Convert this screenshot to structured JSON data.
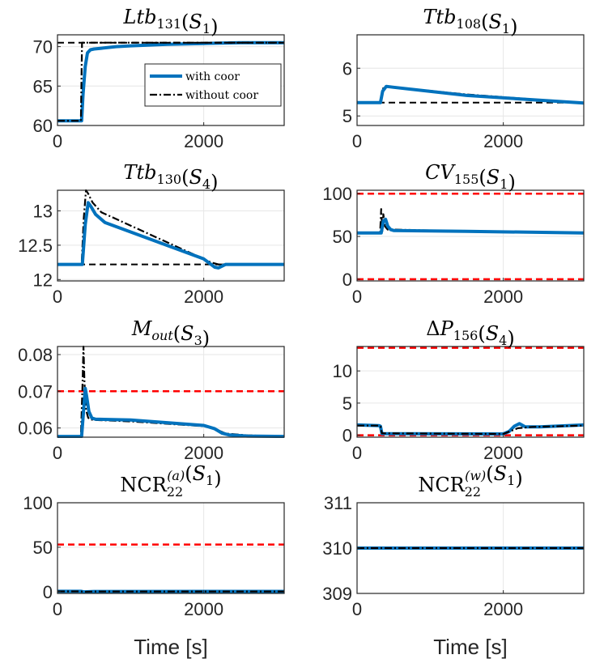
{
  "figure": {
    "legend": {
      "with_label": "with coor",
      "without_label": "without coor"
    }
  },
  "styles": {
    "with_color": "#0072BD",
    "without_color": "#000000",
    "reference_color": "#000000",
    "limit_color": "#FF0000",
    "grid_color": "#E6E6E6",
    "axes_color": "#262626"
  },
  "chart_data": [
    {
      "type": "line",
      "title": "Ltb131(S1)",
      "title_parts": [
        {
          "t": "Ltb",
          "i": true
        },
        {
          "t": "131",
          "sub": true
        },
        {
          "t": "(",
          "i": false
        },
        {
          "t": "S",
          "i": true
        },
        {
          "t": "1",
          "sub": true
        },
        {
          "t": ")",
          "i": false
        }
      ],
      "xlabel": "",
      "xlim": [
        0,
        3100
      ],
      "ylim": [
        60,
        71.5
      ],
      "xticks": [
        0,
        2000
      ],
      "xtick_labels": [
        "0",
        "2000"
      ],
      "yticks": [
        60,
        65,
        70
      ],
      "ytick_labels": [
        "60",
        "65",
        "70"
      ],
      "legend": true,
      "legend_position": "center-right",
      "series": [
        {
          "name": "with coor",
          "style": "with",
          "x": [
            0,
            330,
            350,
            380,
            410,
            450,
            500,
            600,
            800,
            1000,
            1500,
            2000,
            2500,
            3100
          ],
          "y": [
            60.6,
            60.6,
            64,
            67.5,
            69.2,
            69.6,
            69.7,
            69.8,
            70,
            70.1,
            70.3,
            70.4,
            70.5,
            70.5
          ]
        },
        {
          "name": "without coor",
          "style": "without",
          "x": [
            0,
            320,
            335,
            3100
          ],
          "y": [
            60.6,
            60.6,
            70.5,
            70.5
          ]
        },
        {
          "name": "reference",
          "style": "ref",
          "x": [
            0,
            3100
          ],
          "y": [
            70.5,
            70.5
          ]
        }
      ]
    },
    {
      "type": "line",
      "title": "Ttb108(S1)",
      "title_parts": [
        {
          "t": "Ttb",
          "i": true
        },
        {
          "t": "108",
          "sub": true
        },
        {
          "t": "(",
          "i": false
        },
        {
          "t": "S",
          "i": true
        },
        {
          "t": "1",
          "sub": true
        },
        {
          "t": ")",
          "i": false
        }
      ],
      "xlabel": "",
      "xlim": [
        0,
        3100
      ],
      "ylim": [
        4.8,
        6.7
      ],
      "xticks": [
        0,
        2000
      ],
      "xtick_labels": [
        "0",
        "2000"
      ],
      "yticks": [
        5,
        6
      ],
      "ytick_labels": [
        "5",
        "6"
      ],
      "legend": false,
      "series": [
        {
          "name": "reference",
          "style": "ref",
          "x": [
            0,
            3100
          ],
          "y": [
            5.28,
            5.28
          ]
        },
        {
          "name": "without coor",
          "style": "without",
          "x": [
            0,
            320,
            345,
            380,
            500,
            1500,
            3100
          ],
          "y": [
            5.28,
            5.28,
            5.55,
            5.63,
            5.6,
            5.45,
            5.27
          ]
        },
        {
          "name": "with coor",
          "style": "with",
          "x": [
            0,
            320,
            350,
            400,
            500,
            1500,
            3100
          ],
          "y": [
            5.28,
            5.28,
            5.52,
            5.62,
            5.6,
            5.43,
            5.27
          ]
        }
      ]
    },
    {
      "type": "line",
      "title": "Ttb130(S4)",
      "title_parts": [
        {
          "t": "Ttb",
          "i": true
        },
        {
          "t": "130",
          "sub": true
        },
        {
          "t": "(",
          "i": false
        },
        {
          "t": "S",
          "i": true
        },
        {
          "t": "4",
          "sub": true
        },
        {
          "t": ")",
          "i": false
        }
      ],
      "xlabel": "",
      "xlim": [
        0,
        3100
      ],
      "ylim": [
        11.98,
        13.3
      ],
      "xticks": [
        0,
        2000
      ],
      "xtick_labels": [
        "0",
        "2000"
      ],
      "yticks": [
        12,
        12.5,
        13
      ],
      "ytick_labels": [
        "12",
        "12.5",
        "13"
      ],
      "legend": false,
      "series": [
        {
          "name": "reference",
          "style": "ref",
          "x": [
            0,
            3100
          ],
          "y": [
            12.22,
            12.22
          ]
        },
        {
          "name": "without coor",
          "style": "without",
          "x": [
            0,
            330,
            360,
            390,
            420,
            480,
            600,
            2100,
            2200,
            3100
          ],
          "y": [
            12.22,
            12.22,
            12.9,
            13.3,
            13.25,
            13.12,
            12.98,
            12.25,
            12.22,
            12.22
          ]
        },
        {
          "name": "with coor",
          "style": "with",
          "x": [
            0,
            340,
            380,
            420,
            460,
            520,
            650,
            2000,
            2150,
            2200,
            2300,
            3100
          ],
          "y": [
            12.22,
            12.22,
            12.8,
            13.12,
            13.06,
            12.95,
            12.83,
            12.3,
            12.18,
            12.17,
            12.22,
            12.22
          ]
        }
      ]
    },
    {
      "type": "line",
      "title": "CV155(S1)",
      "title_parts": [
        {
          "t": "CV",
          "i": true
        },
        {
          "t": "155",
          "sub": true
        },
        {
          "t": "(",
          "i": false
        },
        {
          "t": "S",
          "i": true
        },
        {
          "t": "1",
          "sub": true
        },
        {
          "t": ")",
          "i": false
        }
      ],
      "xlabel": "",
      "xlim": [
        0,
        3100
      ],
      "ylim": [
        -2,
        104
      ],
      "xticks": [
        0,
        2000
      ],
      "xtick_labels": [
        "0",
        "2000"
      ],
      "yticks": [
        0,
        50,
        100
      ],
      "ytick_labels": [
        "0",
        "50",
        "100"
      ],
      "legend": false,
      "series": [
        {
          "name": "upper limit",
          "style": "limit",
          "x": [
            0,
            3100
          ],
          "y": [
            100,
            100
          ]
        },
        {
          "name": "lower limit",
          "style": "limit",
          "x": [
            0,
            3100
          ],
          "y": [
            0,
            0
          ]
        },
        {
          "name": "without coor",
          "style": "without",
          "x": [
            0,
            315,
            330,
            345,
            360,
            380,
            420,
            500,
            1500,
            3100
          ],
          "y": [
            54,
            54,
            82,
            56,
            76,
            62,
            58,
            58,
            56,
            54
          ]
        },
        {
          "name": "with coor",
          "style": "with",
          "x": [
            0,
            330,
            360,
            390,
            420,
            460,
            500,
            1500,
            3100
          ],
          "y": [
            54,
            54,
            68,
            70,
            62,
            58,
            57,
            56,
            54
          ]
        }
      ]
    },
    {
      "type": "line",
      "title": "Mout(S3)",
      "title_parts": [
        {
          "t": "M",
          "i": true
        },
        {
          "t": "out",
          "sub": true,
          "si": true
        },
        {
          "t": "(",
          "i": false
        },
        {
          "t": "S",
          "i": true
        },
        {
          "t": "3",
          "sub": true
        },
        {
          "t": ")",
          "i": false
        }
      ],
      "xlabel": "",
      "xlim": [
        0,
        3100
      ],
      "ylim": [
        0.0575,
        0.0822
      ],
      "xticks": [
        0,
        2000
      ],
      "xtick_labels": [
        "0",
        "2000"
      ],
      "yticks": [
        0.06,
        0.07,
        0.08
      ],
      "ytick_labels": [
        "0.06",
        "0.07",
        "0.08"
      ],
      "legend": false,
      "series": [
        {
          "name": "upper limit",
          "style": "limit",
          "x": [
            0,
            3100
          ],
          "y": [
            0.07,
            0.07
          ]
        },
        {
          "name": "without coor",
          "style": "without",
          "x": [
            0,
            320,
            340,
            355,
            370,
            390,
            420,
            450,
            500,
            1000,
            2000,
            2150,
            2300,
            2600,
            3100
          ],
          "y": [
            0.0577,
            0.0577,
            0.07,
            0.0822,
            0.072,
            0.065,
            0.0628,
            0.0623,
            0.0622,
            0.0618,
            0.0605,
            0.0598,
            0.0585,
            0.058,
            0.0577
          ]
        },
        {
          "name": "with coor",
          "style": "with",
          "x": [
            0,
            330,
            360,
            380,
            400,
            430,
            470,
            520,
            1000,
            2000,
            2150,
            2250,
            2350,
            2600,
            3100
          ],
          "y": [
            0.0577,
            0.0577,
            0.0655,
            0.0708,
            0.0685,
            0.0645,
            0.0627,
            0.0624,
            0.0622,
            0.0607,
            0.0598,
            0.0586,
            0.0581,
            0.0578,
            0.0577
          ]
        }
      ]
    },
    {
      "type": "line",
      "title": "ΔP156(S4)",
      "title_parts": [
        {
          "t": "Δ",
          "i": false
        },
        {
          "t": "P",
          "i": true
        },
        {
          "t": "156",
          "sub": true
        },
        {
          "t": "(",
          "i": false
        },
        {
          "t": "S",
          "i": true
        },
        {
          "t": "4",
          "sub": true
        },
        {
          "t": ")",
          "i": false
        }
      ],
      "xlabel": "",
      "xlim": [
        0,
        3100
      ],
      "ylim": [
        -0.3,
        13.8
      ],
      "xticks": [
        0,
        2000
      ],
      "xtick_labels": [
        "0",
        "2000"
      ],
      "yticks": [
        0,
        5,
        10
      ],
      "ytick_labels": [
        "0",
        "5",
        "10"
      ],
      "legend": false,
      "series": [
        {
          "name": "upper limit",
          "style": "limit",
          "x": [
            0,
            3100
          ],
          "y": [
            13.6,
            13.6
          ]
        },
        {
          "name": "lower limit",
          "style": "limit",
          "x": [
            0,
            3100
          ],
          "y": [
            0,
            0
          ]
        },
        {
          "name": "with coor",
          "style": "with",
          "x": [
            0,
            300,
            320,
            340,
            2000,
            2080,
            2150,
            2220,
            2300,
            2500,
            3100
          ],
          "y": [
            1.6,
            1.5,
            1.4,
            0.25,
            0.2,
            0.6,
            1.4,
            1.8,
            1.3,
            1.3,
            1.6
          ]
        },
        {
          "name": "without coor",
          "style": "without",
          "x": [
            0,
            300,
            320,
            340,
            2000,
            2200,
            2400,
            3100
          ],
          "y": [
            1.5,
            1.5,
            1.4,
            0.3,
            0.2,
            1.1,
            1.3,
            1.5
          ]
        }
      ]
    },
    {
      "type": "line",
      "title": "NCR22(a)(S1)",
      "title_parts": [
        {
          "t": "NCR",
          "i": false
        },
        {
          "t": "22",
          "sub": true,
          "sup": "(a)"
        },
        {
          "t": "(",
          "i": false
        },
        {
          "t": "S",
          "i": true
        },
        {
          "t": "1",
          "sub": true
        },
        {
          "t": ")",
          "i": false
        }
      ],
      "xlabel": "Time [s]",
      "xlim": [
        0,
        3100
      ],
      "ylim": [
        -2,
        100
      ],
      "xticks": [
        0,
        2000
      ],
      "xtick_labels": [
        "0",
        "2000"
      ],
      "yticks": [
        0,
        50,
        100
      ],
      "ytick_labels": [
        "0",
        "50",
        "100"
      ],
      "legend": false,
      "series": [
        {
          "name": "upper limit",
          "style": "limit",
          "x": [
            0,
            3100
          ],
          "y": [
            53,
            53
          ]
        },
        {
          "name": "with coor",
          "style": "with",
          "x": [
            0,
            320,
            360,
            500,
            3100
          ],
          "y": [
            0.4,
            0.4,
            -0.3,
            0.2,
            0.3
          ]
        },
        {
          "name": "without coor",
          "style": "without",
          "x": [
            0,
            320,
            360,
            500,
            3100
          ],
          "y": [
            0.3,
            0.3,
            -0.2,
            0.2,
            0.2
          ]
        }
      ]
    },
    {
      "type": "line",
      "title": "NCR22(w)(S1)",
      "title_parts": [
        {
          "t": "NCR",
          "i": false
        },
        {
          "t": "22",
          "sub": true,
          "sup": "(w)"
        },
        {
          "t": "(",
          "i": false
        },
        {
          "t": "S",
          "i": true
        },
        {
          "t": "1",
          "sub": true
        },
        {
          "t": ")",
          "i": false
        }
      ],
      "xlabel": "Time [s]",
      "xlim": [
        0,
        3100
      ],
      "ylim": [
        309,
        311
      ],
      "xticks": [
        0,
        2000
      ],
      "xtick_labels": [
        "0",
        "2000"
      ],
      "yticks": [
        309,
        310,
        311
      ],
      "ytick_labels": [
        "309",
        "310",
        "311"
      ],
      "legend": false,
      "series": [
        {
          "name": "with coor",
          "style": "with",
          "x": [
            0,
            3100
          ],
          "y": [
            310,
            310
          ]
        },
        {
          "name": "without coor",
          "style": "without",
          "x": [
            0,
            3100
          ],
          "y": [
            310,
            310
          ]
        }
      ]
    }
  ]
}
